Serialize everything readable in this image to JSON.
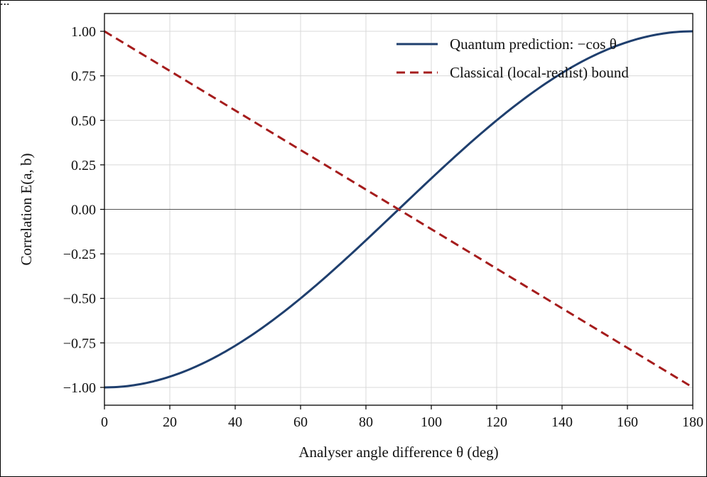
{
  "caption_fragment": "...",
  "chart_data": {
    "type": "line",
    "xlabel": "Analyser angle difference θ (deg)",
    "ylabel": "Correlation E(a, b)",
    "xlim": [
      0,
      180
    ],
    "ylim": [
      -1.1,
      1.1
    ],
    "x_ticks": [
      0,
      20,
      40,
      60,
      80,
      100,
      120,
      140,
      160,
      180
    ],
    "y_ticks": [
      1.0,
      0.75,
      0.5,
      0.25,
      0.0,
      -0.25,
      -0.5,
      -0.75,
      -1.0
    ],
    "x_tick_labels": [
      "0",
      "20",
      "40",
      "60",
      "80",
      "100",
      "120",
      "140",
      "160",
      "180"
    ],
    "y_tick_labels": [
      "1.00",
      "0.75",
      "0.50",
      "0.25",
      "0.00",
      "−0.25",
      "−0.50",
      "−0.75",
      "−1.00"
    ],
    "grid": true,
    "zero_line": true,
    "legend_position": "top-right",
    "series": [
      {
        "name": "Quantum prediction: −cos θ",
        "style": "solid",
        "color": "#1f3f6e",
        "x": [
          0,
          10,
          20,
          30,
          40,
          50,
          60,
          70,
          80,
          90,
          100,
          110,
          120,
          130,
          140,
          150,
          160,
          170,
          180
        ],
        "y": [
          -1.0,
          -0.985,
          -0.94,
          -0.866,
          -0.766,
          -0.643,
          -0.5,
          -0.342,
          -0.174,
          0.0,
          0.174,
          0.342,
          0.5,
          0.643,
          0.766,
          0.866,
          0.94,
          0.985,
          1.0
        ]
      },
      {
        "name": "Classical (local-realist) bound",
        "style": "dashed",
        "color": "#a51c1c",
        "x": [
          0,
          180
        ],
        "y": [
          1.0,
          -1.0
        ]
      }
    ]
  }
}
